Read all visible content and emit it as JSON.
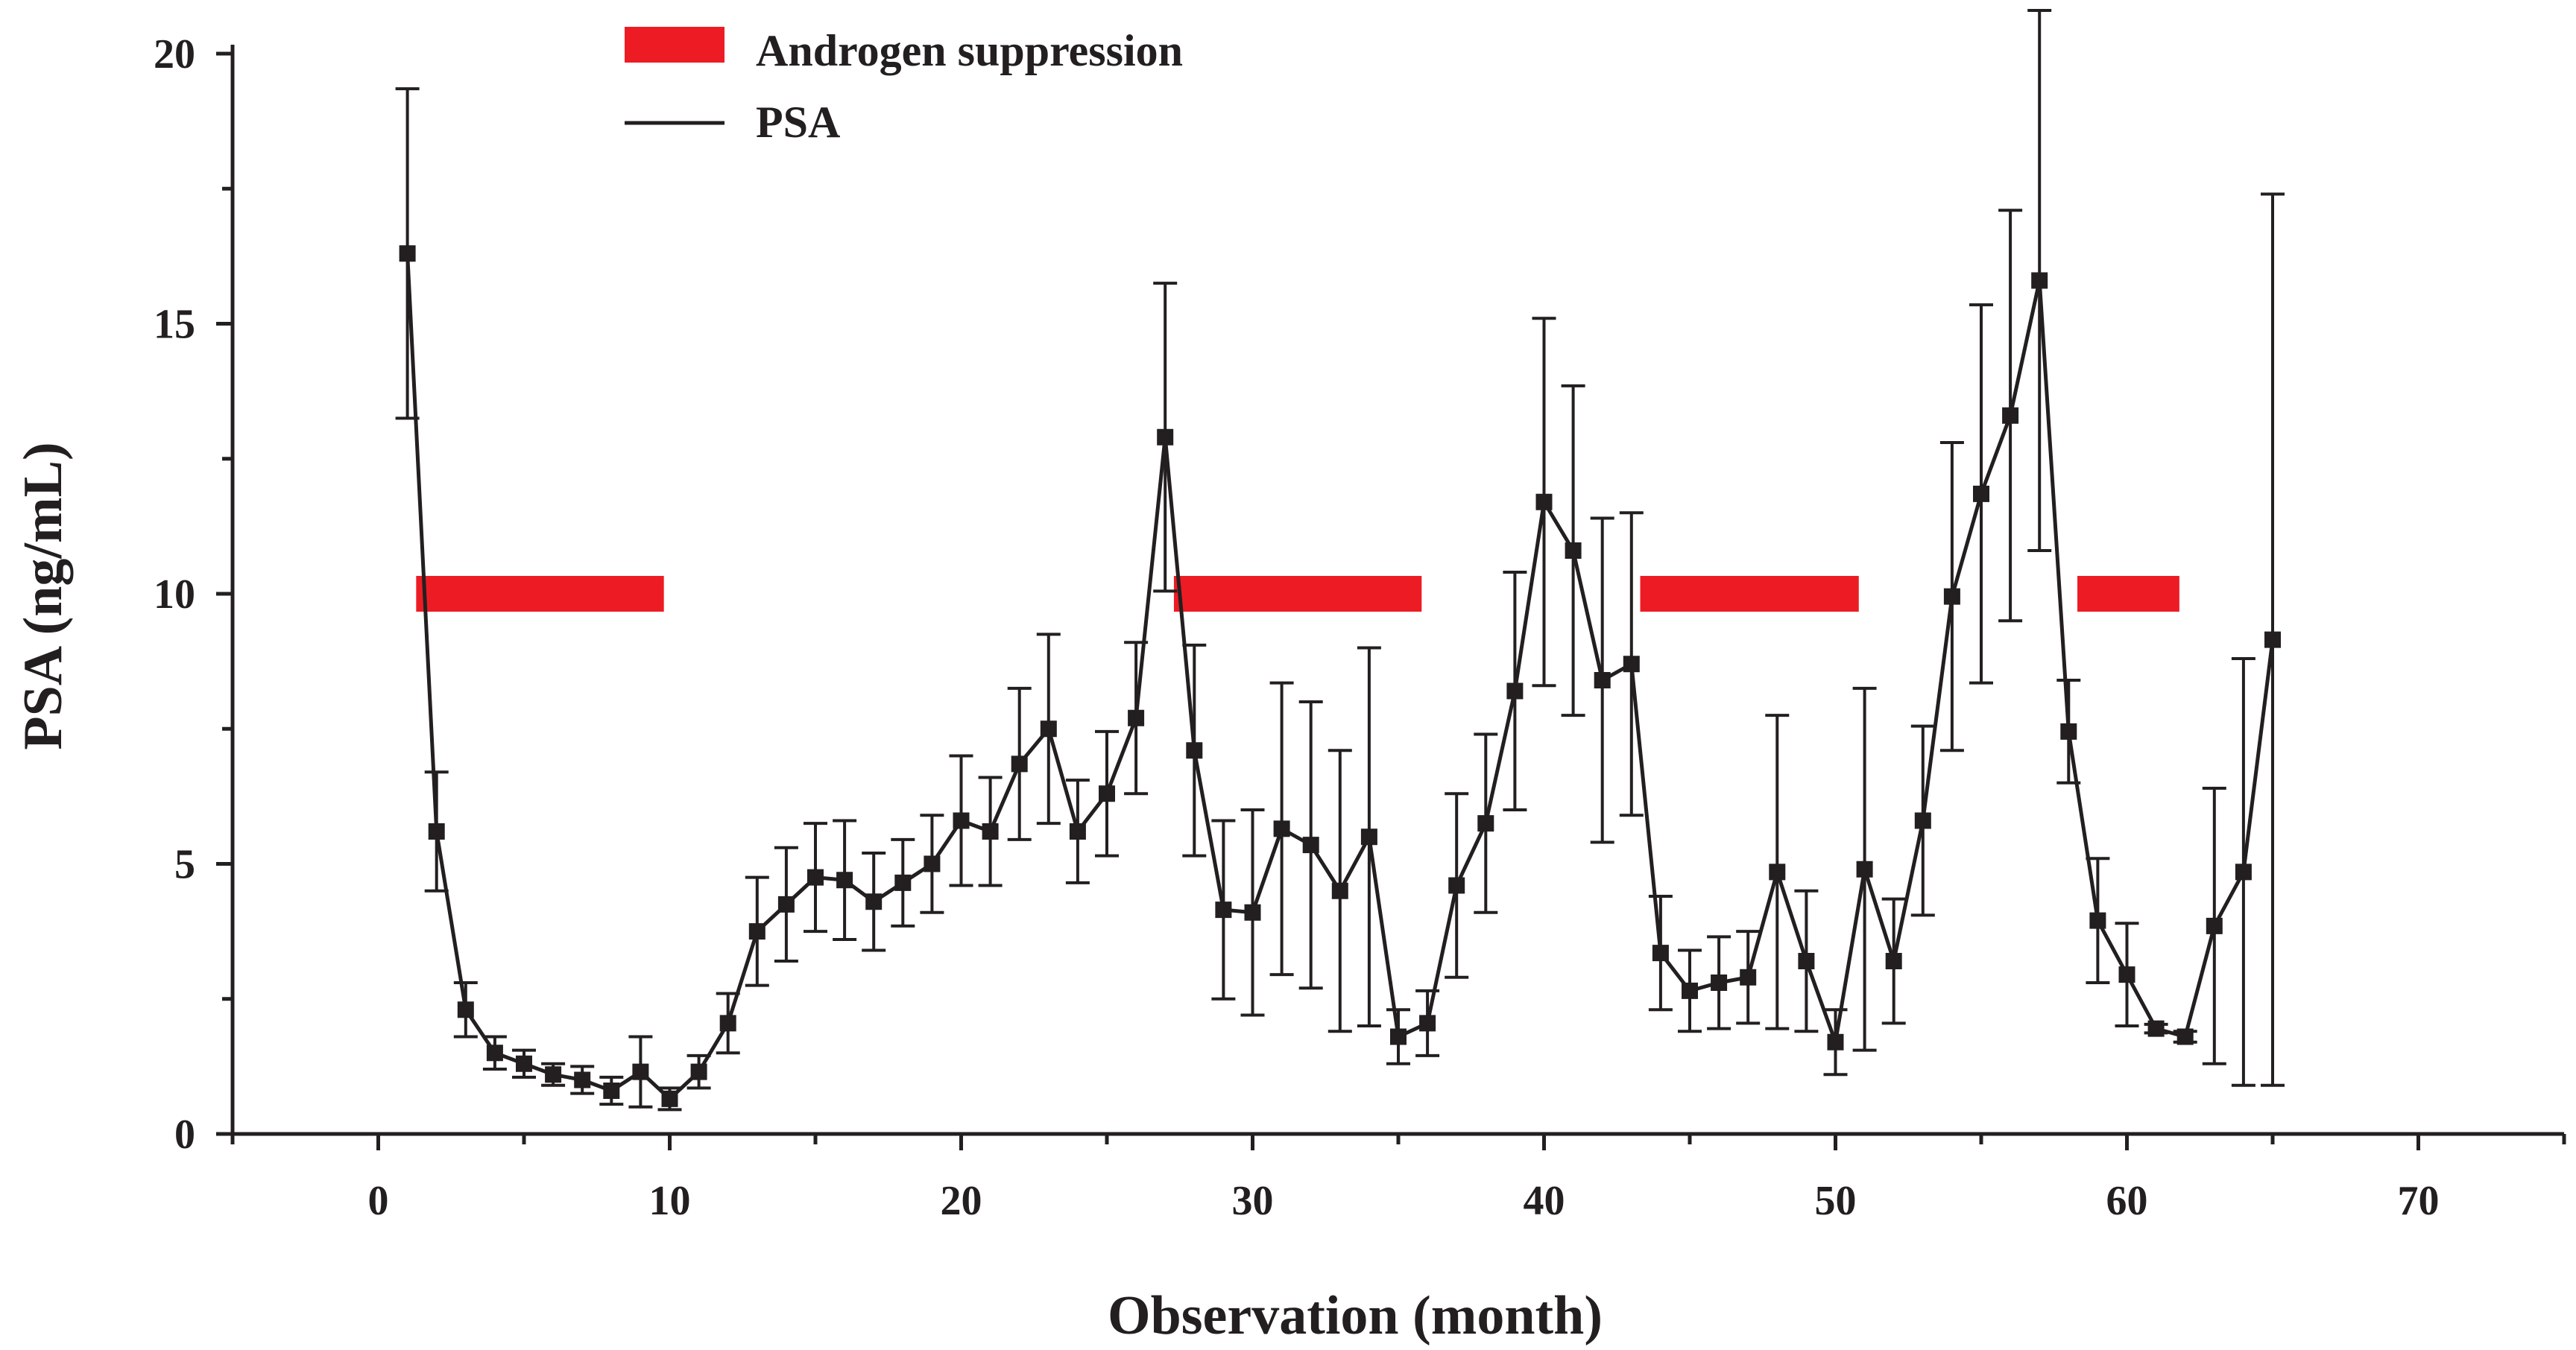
{
  "chart_data": {
    "type": "line",
    "title": "",
    "xlabel": "Observation (month)",
    "ylabel": "PSA (ng/mL)",
    "xlim": [
      -5,
      75
    ],
    "ylim": [
      0,
      20
    ],
    "xticks": [
      0,
      10,
      20,
      30,
      40,
      50,
      60,
      70
    ],
    "yticks": [
      0,
      5,
      10,
      15,
      20
    ],
    "grid": false,
    "legend": {
      "position": "top-left",
      "entries": [
        {
          "label": "Androgen suppression",
          "type": "bar",
          "color": "#ed1c24"
        },
        {
          "label": "PSA",
          "type": "line",
          "color": "#231f20"
        }
      ]
    },
    "series": [
      {
        "name": "PSA",
        "color": "#231f20",
        "x": [
          1,
          2,
          3,
          4,
          5,
          6,
          7,
          8,
          9,
          10,
          11,
          12,
          13,
          14,
          15,
          16,
          17,
          18,
          19,
          20,
          21,
          22,
          23,
          24,
          25,
          26,
          27,
          28,
          29,
          30,
          31,
          32,
          33,
          34,
          35,
          36,
          37,
          38,
          39,
          40,
          41,
          42,
          43,
          44,
          45,
          46,
          47,
          48,
          49,
          50,
          51,
          52,
          53,
          54,
          55,
          56,
          57,
          58,
          59,
          60,
          61,
          62,
          63,
          64,
          65
        ],
        "y": [
          16.3,
          5.6,
          2.3,
          1.5,
          1.3,
          1.1,
          1.0,
          0.8,
          1.15,
          0.65,
          1.15,
          2.05,
          3.75,
          4.25,
          4.75,
          4.7,
          4.3,
          4.65,
          5.0,
          5.8,
          5.6,
          6.85,
          7.5,
          5.6,
          6.3,
          7.7,
          12.9,
          7.1,
          4.15,
          4.1,
          5.65,
          5.35,
          4.5,
          5.5,
          1.8,
          2.05,
          4.6,
          5.75,
          8.2,
          11.7,
          10.8,
          8.4,
          8.7,
          3.35,
          2.65,
          2.8,
          2.9,
          4.85,
          3.2,
          1.7,
          4.9,
          3.2,
          5.8,
          9.95,
          11.85,
          13.3,
          15.8,
          7.45,
          3.95,
          2.95,
          1.95,
          1.8,
          3.85,
          4.85,
          9.15
        ],
        "err": [
          3.05,
          1.1,
          0.5,
          0.3,
          0.25,
          0.2,
          0.25,
          0.25,
          0.65,
          0.2,
          0.3,
          0.55,
          1.0,
          1.05,
          1.0,
          1.1,
          0.9,
          0.8,
          0.9,
          1.2,
          1.0,
          1.4,
          1.75,
          0.95,
          1.15,
          1.4,
          2.85,
          1.95,
          1.65,
          1.9,
          2.7,
          2.65,
          2.6,
          3.5,
          0.5,
          0.6,
          1.7,
          1.65,
          2.2,
          3.4,
          3.05,
          3.0,
          2.8,
          1.05,
          0.75,
          0.85,
          0.85,
          2.9,
          1.3,
          0.6,
          3.35,
          1.15,
          1.75,
          2.85,
          3.5,
          3.8,
          5.0,
          0.95,
          1.15,
          0.95,
          0.08,
          0.1,
          2.55,
          3.95,
          8.25
        ]
      }
    ],
    "suppression_periods": [
      {
        "start": 1.3,
        "end": 9.8,
        "level": 10
      },
      {
        "start": 27.3,
        "end": 35.8,
        "level": 10
      },
      {
        "start": 43.3,
        "end": 50.8,
        "level": 10
      },
      {
        "start": 58.3,
        "end": 61.8,
        "level": 10
      }
    ]
  }
}
